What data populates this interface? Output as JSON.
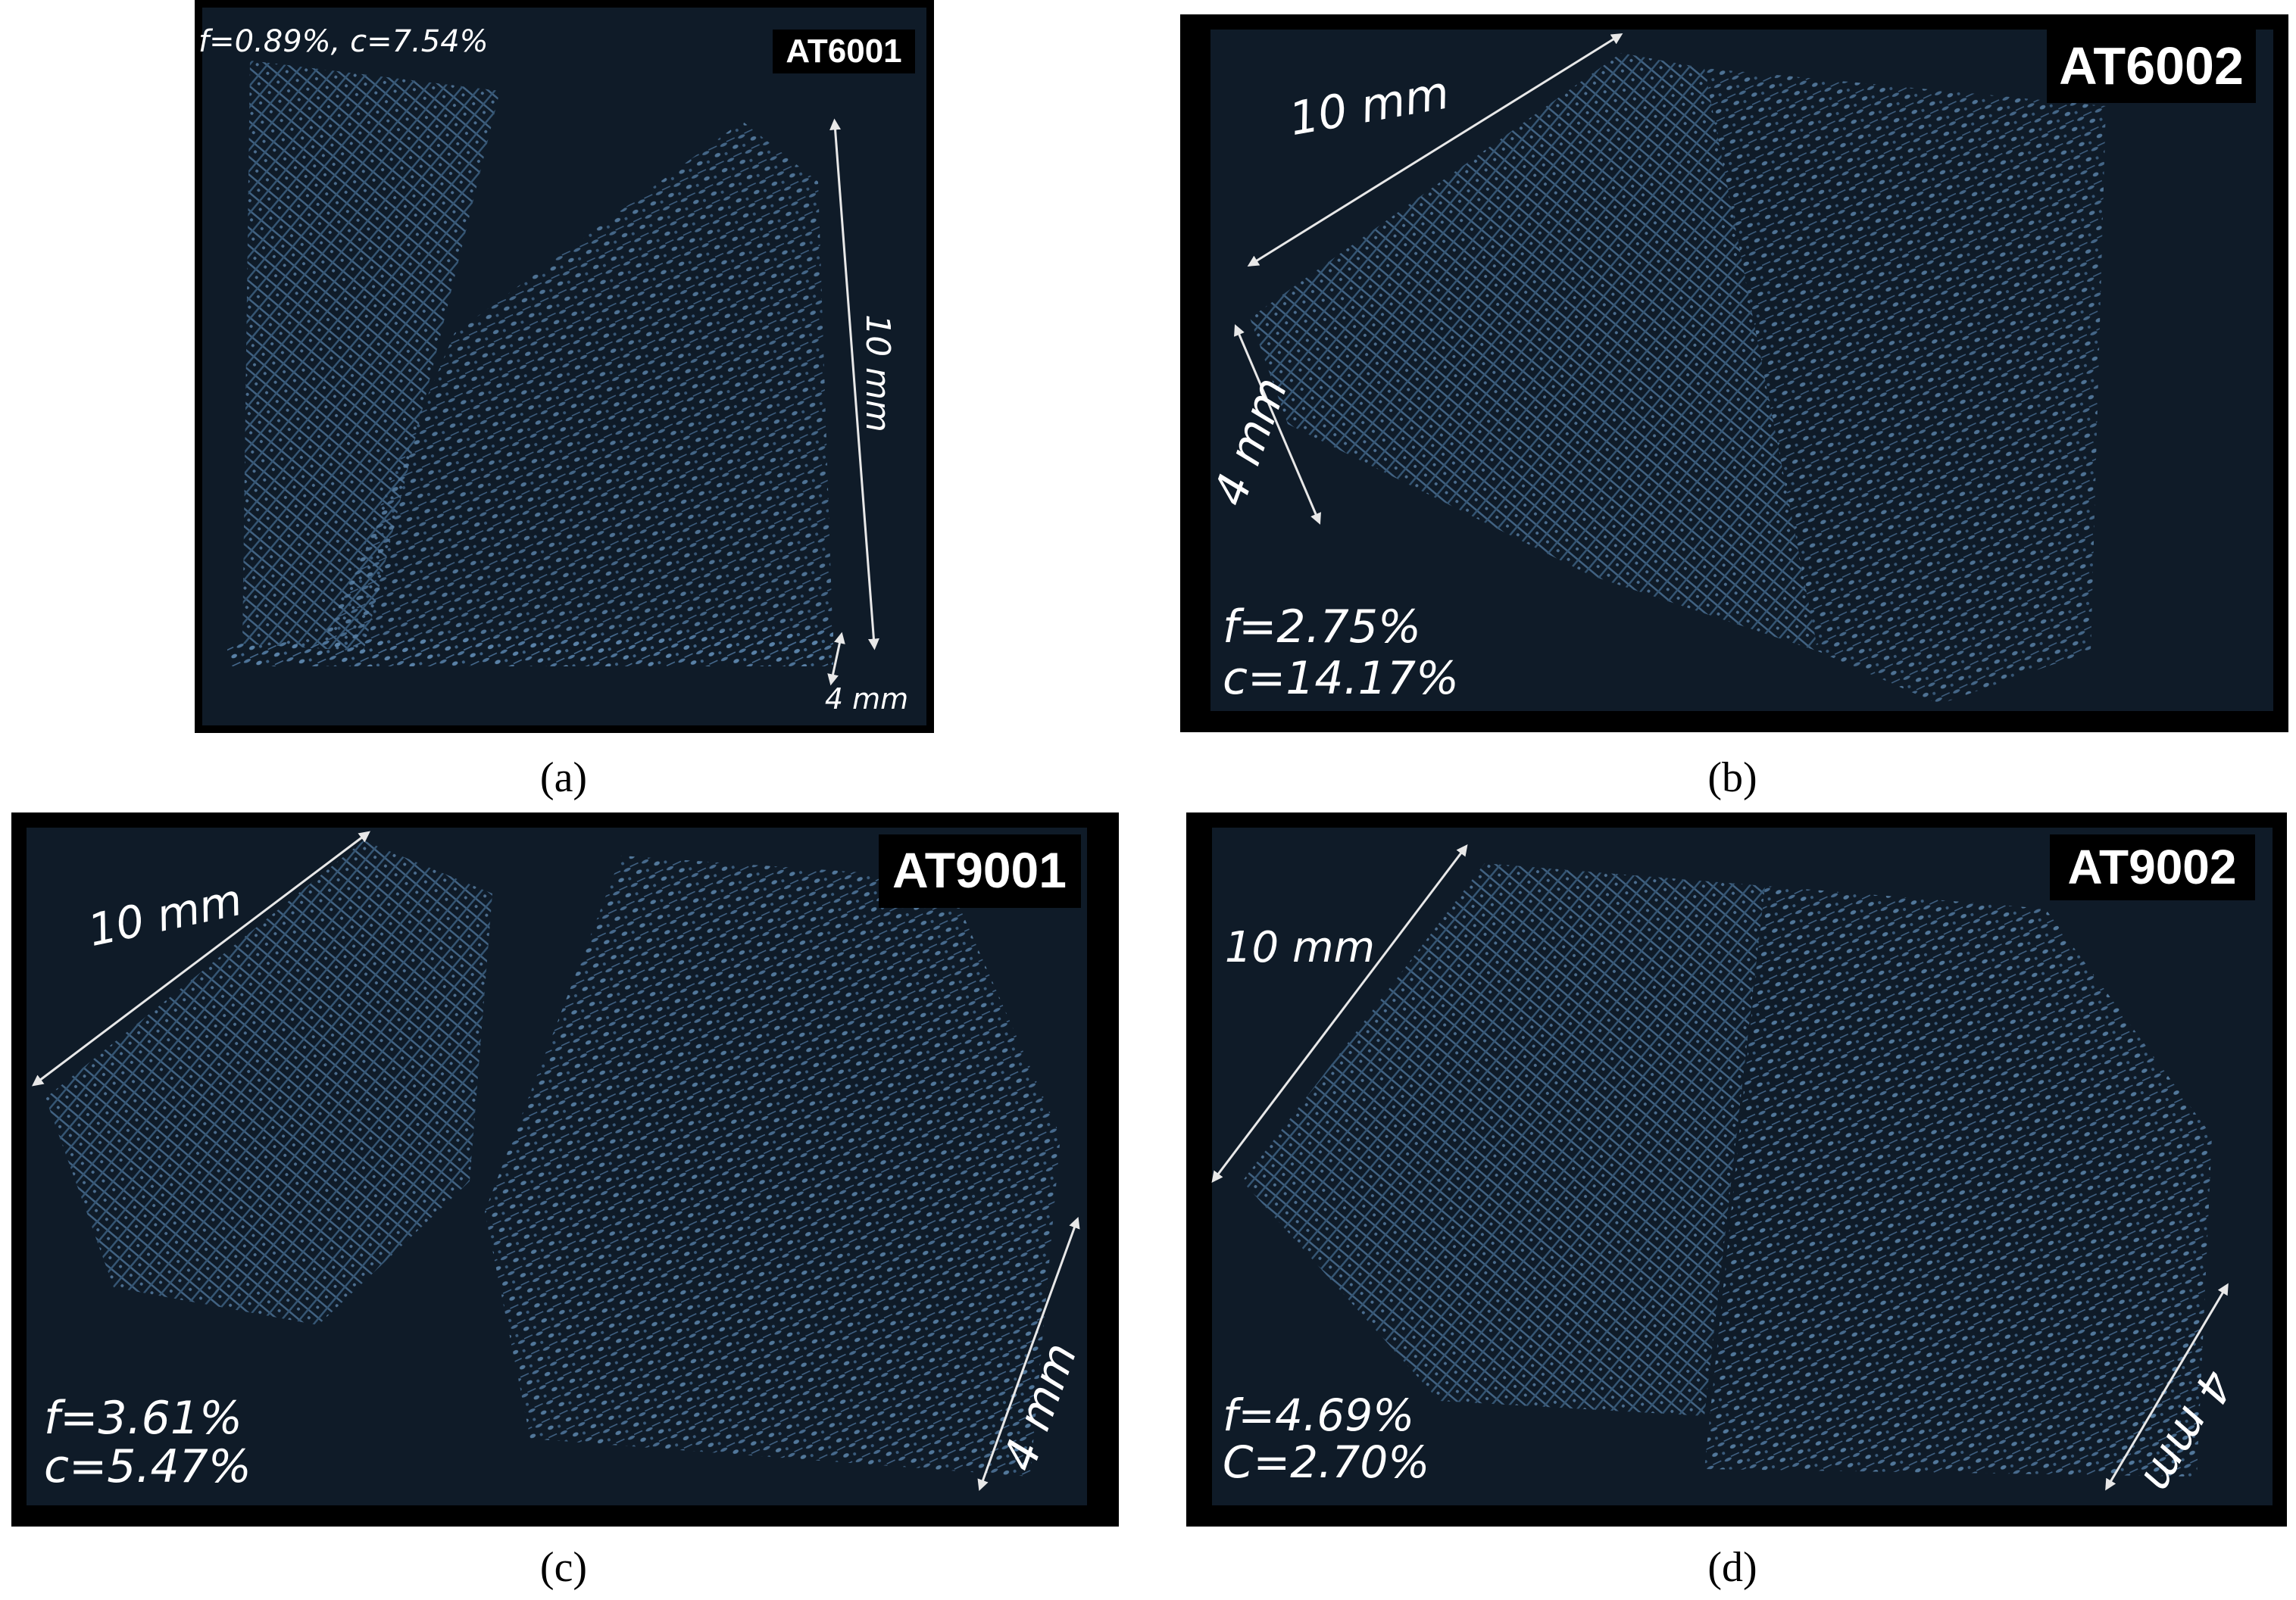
{
  "panels": [
    {
      "caption": "(a)",
      "sample": "AT6001",
      "length": "10 mm",
      "depth": "4 mm",
      "porosity": [
        "f=0.89%, c=7.54%"
      ]
    },
    {
      "caption": "(b)",
      "sample": "AT6002",
      "length": "10 mm",
      "depth": "4 mm",
      "porosity": [
        "f=2.75%",
        "c=14.17%"
      ]
    },
    {
      "caption": "(c)",
      "sample": "AT9001",
      "length": "10 mm",
      "depth": "4 mm",
      "porosity": [
        "f=3.61%",
        "c=5.47%"
      ]
    },
    {
      "caption": "(d)",
      "sample": "AT9002",
      "length": "10 mm",
      "depth": "4 mm",
      "porosity": [
        "f=4.69%",
        "C=2.70%"
      ]
    }
  ]
}
